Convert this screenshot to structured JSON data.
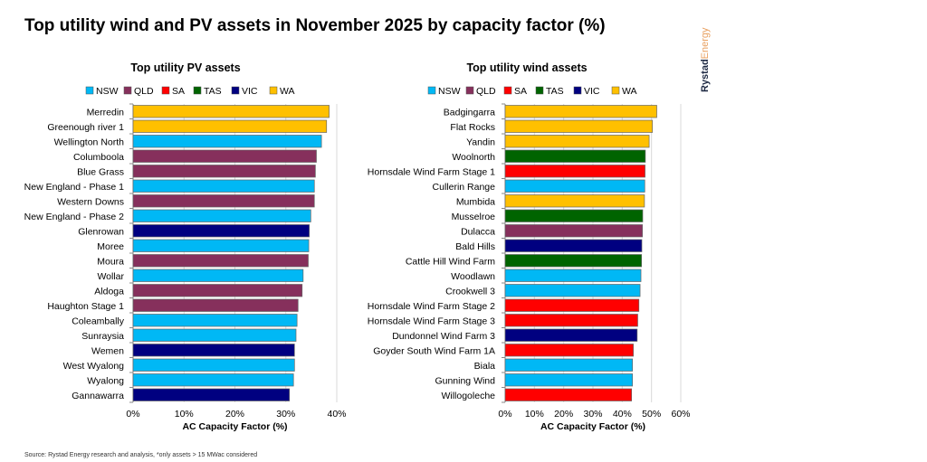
{
  "title": "Top utility wind and PV assets in November 2025 by capacity factor (%)",
  "source": "Source: Rystad Energy research and analysis, *only assets > 15 MWac considered",
  "logo": {
    "part1": "Rystad",
    "part2": "Energy",
    "color1": "#1F2A44",
    "color2": "#E8A060"
  },
  "colors": {
    "NSW": "#00B8F5",
    "QLD": "#86305C",
    "SA": "#FF0000",
    "TAS": "#006400",
    "VIC": "#000080",
    "WA": "#FFC000"
  },
  "chart_data": [
    {
      "type": "bar",
      "orientation": "horizontal",
      "title": "Top utility PV assets",
      "xlabel": "AC Capacity Factor (%)",
      "xlim": [
        0,
        40
      ],
      "xticks": [
        "0%",
        "10%",
        "20%",
        "30%",
        "40%"
      ],
      "xtick_values": [
        0,
        10,
        20,
        30,
        40
      ],
      "grid": true,
      "legend": [
        "NSW",
        "QLD",
        "SA",
        "TAS",
        "VIC",
        "WA"
      ],
      "legend_position": "top",
      "categories": [
        "Merredin",
        "Greenough river 1",
        "Wellington North",
        "Columboola",
        "Blue Grass",
        "New England - Phase 1",
        "Western Downs",
        "New England - Phase 2",
        "Glenrowan",
        "Moree",
        "Moura",
        "Wollar",
        "Aldoga",
        "Haughton Stage 1",
        "Coleambally",
        "Sunraysia",
        "Wemen",
        "West Wyalong",
        "Wyalong",
        "Gannawarra"
      ],
      "states": [
        "WA",
        "WA",
        "NSW",
        "QLD",
        "QLD",
        "NSW",
        "QLD",
        "NSW",
        "VIC",
        "NSW",
        "QLD",
        "NSW",
        "QLD",
        "QLD",
        "NSW",
        "NSW",
        "VIC",
        "NSW",
        "NSW",
        "VIC"
      ],
      "values": [
        38.5,
        38.0,
        37.0,
        36.0,
        35.8,
        35.6,
        35.6,
        34.9,
        34.6,
        34.5,
        34.4,
        33.4,
        33.2,
        32.4,
        32.2,
        32.0,
        31.7,
        31.7,
        31.5,
        30.7
      ]
    },
    {
      "type": "bar",
      "orientation": "horizontal",
      "title": "Top utility wind assets",
      "xlabel": "AC Capacity Factor (%)",
      "xlim": [
        0,
        60
      ],
      "xticks": [
        "0%",
        "10%",
        "20%",
        "30%",
        "40%",
        "50%",
        "60%"
      ],
      "xtick_values": [
        0,
        10,
        20,
        30,
        40,
        50,
        60
      ],
      "grid": true,
      "legend": [
        "NSW",
        "QLD",
        "SA",
        "TAS",
        "VIC",
        "WA"
      ],
      "legend_position": "top",
      "categories": [
        "Badgingarra",
        "Flat Rocks",
        "Yandin",
        "Woolnorth",
        "Hornsdale Wind Farm Stage 1",
        "Cullerin Range",
        "Mumbida",
        "Musselroe",
        "Dulacca",
        "Bald Hills",
        "Cattle Hill Wind Farm",
        "Woodlawn",
        "Crookwell 3",
        "Hornsdale Wind Farm Stage 2",
        "Hornsdale Wind Farm Stage 3",
        "Dundonnel Wind Farm 3",
        "Goyder South Wind Farm 1A",
        "Biala",
        "Gunning Wind",
        "Willogoleche"
      ],
      "states": [
        "WA",
        "WA",
        "WA",
        "TAS",
        "SA",
        "NSW",
        "WA",
        "TAS",
        "QLD",
        "VIC",
        "TAS",
        "NSW",
        "NSW",
        "SA",
        "SA",
        "VIC",
        "SA",
        "NSW",
        "NSW",
        "SA"
      ],
      "values": [
        51.8,
        50.3,
        49.2,
        47.9,
        47.8,
        47.7,
        47.6,
        47.0,
        46.9,
        46.7,
        46.6,
        46.4,
        46.1,
        45.7,
        45.3,
        45.1,
        43.8,
        43.5,
        43.5,
        43.2
      ]
    }
  ]
}
